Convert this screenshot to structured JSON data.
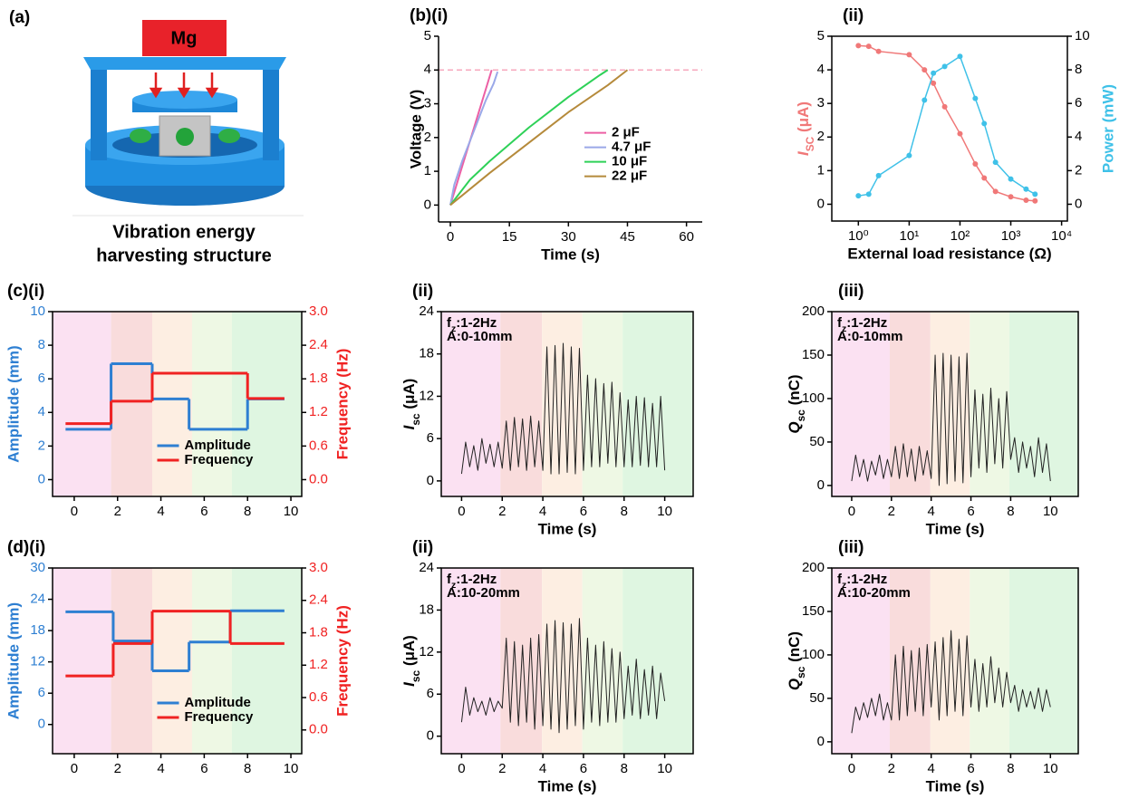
{
  "illustration": {
    "panel_label": "(a)",
    "block_label": "Mg",
    "caption": [
      "Vibration energy",
      "harvesting structure"
    ]
  },
  "chart_data": [
    {
      "type": "line",
      "panel_label": "(b)(i)",
      "xlabel": "Time (s)",
      "ylabel": "Voltage (V)",
      "xlim": [
        -3,
        64
      ],
      "xticks": [
        0,
        15,
        30,
        45,
        60
      ],
      "ylim": [
        -0.5,
        5
      ],
      "yticks": [
        0,
        1,
        2,
        3,
        4,
        5
      ],
      "frame": false,
      "legend": "center right",
      "hline": 4,
      "hline_color": "#f7a8bd",
      "series": [
        {
          "name": "2 μF",
          "color": "#ec5fa4",
          "x": [
            0,
            10.5
          ],
          "values": [
            0,
            4
          ]
        },
        {
          "name": "4.7 μF",
          "color": "#9aa8e8",
          "x": [
            0,
            1,
            3,
            6,
            9,
            11,
            12
          ],
          "values": [
            0,
            0.6,
            1.3,
            2.2,
            3.1,
            3.6,
            3.95
          ]
        },
        {
          "name": "10 μF",
          "color": "#2ed158",
          "x": [
            0,
            5,
            10,
            20,
            30,
            38,
            40
          ],
          "values": [
            0,
            0.75,
            1.3,
            2.3,
            3.2,
            3.85,
            4
          ]
        },
        {
          "name": "22 μF",
          "color": "#b58a3b",
          "x": [
            0,
            10,
            20,
            30,
            40,
            45
          ],
          "values": [
            0,
            0.95,
            1.85,
            2.75,
            3.55,
            4
          ]
        }
      ]
    },
    {
      "type": "line",
      "panel_label": "(ii)",
      "xlabel": "External load resistance (Ω)",
      "ylabel": [
        {
          "text": "I",
          "style": "italic"
        },
        {
          "text": "SC",
          "style": "sub"
        },
        {
          "text": " (μA)"
        }
      ],
      "y2label": "Power (mW)",
      "ycolor": "#f07878",
      "y2color": "#3fc1e8",
      "xscale": "log",
      "markers": true,
      "frame": true,
      "xlim": [
        0.3,
        13000
      ],
      "xticks": [
        {
          "value": 1,
          "label": "10⁰"
        },
        {
          "value": 10,
          "label": "10¹"
        },
        {
          "value": 100,
          "label": "10²"
        },
        {
          "value": 1000,
          "label": "10³"
        },
        {
          "value": 10000,
          "label": "10⁴"
        }
      ],
      "ylim": [
        -0.5,
        5
      ],
      "yticks": [
        0,
        1,
        2,
        3,
        4,
        5
      ],
      "y2lim": [
        -1,
        10
      ],
      "y2ticks": [
        0,
        2,
        4,
        6,
        8,
        10
      ],
      "x": [
        1,
        1.6,
        2.5,
        10,
        20,
        30,
        50,
        100,
        200,
        300,
        500,
        1000,
        2000,
        3000
      ],
      "series": [
        {
          "color": "#f07878",
          "values": [
            4.72,
            4.7,
            4.55,
            4.45,
            4.0,
            3.6,
            2.9,
            2.1,
            1.2,
            0.78,
            0.38,
            0.22,
            0.12,
            0.1
          ]
        },
        {
          "color": "#3fc1e8",
          "axis": "y2",
          "values": [
            0.5,
            0.6,
            1.7,
            2.9,
            6.2,
            7.8,
            8.2,
            8.8,
            6.3,
            4.8,
            2.5,
            1.5,
            0.9,
            0.6
          ]
        }
      ]
    },
    {
      "type": "step",
      "panel_label": "(c)(i)",
      "ylabel": "Amplitude (mm)",
      "y2label": "Frequency (Hz)",
      "ycolor": "#2e7fd2",
      "y2color": "#f02222",
      "color_ticks": true,
      "bands": true,
      "frame": true,
      "legend": "lower center",
      "xlim": [
        -1,
        10.5
      ],
      "xticks": [
        0,
        2,
        4,
        6,
        8,
        10
      ],
      "ylim": [
        -1,
        10
      ],
      "yticks": [
        0,
        2,
        4,
        6,
        8,
        10
      ],
      "y2lim": [
        -0.3,
        3.0
      ],
      "y2ticks": [
        {
          "value": 0,
          "label": "0.0"
        },
        0.6,
        1.2,
        1.8,
        2.4,
        {
          "value": 3,
          "label": "3.0"
        }
      ],
      "series": [
        {
          "name": "Amplitude",
          "color": "#2e7fd2",
          "bins": [
            -0.4,
            1.7,
            3.6,
            5.3,
            8,
            9.7
          ],
          "values": [
            3,
            6.9,
            4.8,
            3,
            4.8
          ]
        },
        {
          "name": "Frequency",
          "color": "#f02222",
          "axis": "y2",
          "bins": [
            -0.4,
            1.7,
            3.6,
            8,
            9.7
          ],
          "values": [
            1.0,
            1.4,
            1.9,
            1.45
          ]
        }
      ]
    },
    {
      "type": "line",
      "panel_label": "(ii)",
      "xlabel": "Time (s)",
      "ylabel": [
        {
          "text": "I",
          "style": "italic"
        },
        {
          "text": "sc",
          "style": "sub"
        },
        {
          "text": " (μA)"
        }
      ],
      "annotations": [
        [
          {
            "text": "f"
          },
          {
            "text": "z",
            "style": "sub"
          },
          {
            "text": ":1-2Hz"
          }
        ],
        "A:0-10mm"
      ],
      "bands": true,
      "frame": true,
      "xlim": [
        -1,
        11.4
      ],
      "xticks": [
        0,
        2,
        4,
        6,
        8,
        10
      ],
      "ylim": [
        -2.2,
        24
      ],
      "yticks": [
        0,
        6,
        12,
        18,
        24
      ],
      "x": [
        0,
        0.2,
        0.4,
        0.6,
        0.8,
        1,
        1.2,
        1.4,
        1.6,
        1.8,
        2,
        2.2,
        2.4,
        2.6,
        2.8,
        3,
        3.2,
        3.4,
        3.6,
        3.8,
        4,
        4.2,
        4.4,
        4.6,
        4.8,
        5,
        5.2,
        5.4,
        5.6,
        5.8,
        6,
        6.2,
        6.4,
        6.6,
        6.8,
        7,
        7.2,
        7.4,
        7.6,
        7.8,
        8,
        8.2,
        8.4,
        8.6,
        8.8,
        9,
        9.2,
        9.4,
        9.6,
        9.8,
        10
      ],
      "series": [
        {
          "color": "#222222",
          "values": [
            1,
            5.5,
            2,
            5,
            1.5,
            6,
            2.5,
            5.2,
            2,
            5.5,
            1.8,
            8.5,
            1.5,
            9,
            2,
            8.8,
            1.5,
            9.2,
            2,
            8.5,
            1.5,
            19,
            1,
            19.2,
            1,
            19.5,
            1.2,
            19,
            1,
            18.8,
            1.5,
            15,
            2,
            14.5,
            2,
            13.8,
            2.5,
            14,
            2,
            12.5,
            2,
            11.5,
            2,
            12,
            2.2,
            11.8,
            2,
            11,
            2,
            12,
            1.5
          ]
        }
      ]
    },
    {
      "type": "line",
      "panel_label": "(iii)",
      "xlabel": "Time (s)",
      "ylabel": [
        {
          "text": "Q",
          "style": "italic"
        },
        {
          "text": "sc",
          "style": "sub"
        },
        {
          "text": " (nC)"
        }
      ],
      "annotations": [
        [
          {
            "text": "f"
          },
          {
            "text": "z",
            "style": "sub"
          },
          {
            "text": ":1-2Hz"
          }
        ],
        "A:0-10mm"
      ],
      "bands": true,
      "frame": true,
      "xlim": [
        -1,
        11.4
      ],
      "xticks": [
        0,
        2,
        4,
        6,
        8,
        10
      ],
      "ylim": [
        -12.6,
        200
      ],
      "yticks": [
        0,
        50,
        100,
        150,
        200
      ],
      "x": [
        0,
        0.2,
        0.4,
        0.6,
        0.8,
        1,
        1.2,
        1.4,
        1.6,
        1.8,
        2,
        2.2,
        2.4,
        2.6,
        2.8,
        3,
        3.2,
        3.4,
        3.6,
        3.8,
        4,
        4.2,
        4.4,
        4.6,
        4.8,
        5,
        5.2,
        5.4,
        5.6,
        5.8,
        6,
        6.2,
        6.4,
        6.6,
        6.8,
        7,
        7.2,
        7.4,
        7.6,
        7.8,
        8,
        8.2,
        8.4,
        8.6,
        8.8,
        9,
        9.2,
        9.4,
        9.6,
        9.8,
        10
      ],
      "series": [
        {
          "color": "#222222",
          "values": [
            5,
            35,
            10,
            30,
            5,
            28,
            12,
            35,
            8,
            30,
            10,
            45,
            8,
            48,
            10,
            42,
            5,
            45,
            12,
            40,
            8,
            150,
            0,
            152,
            2,
            150,
            5,
            148,
            3,
            152,
            10,
            110,
            20,
            105,
            15,
            112,
            25,
            100,
            20,
            108,
            30,
            55,
            15,
            50,
            20,
            45,
            10,
            55,
            15,
            48,
            5
          ]
        }
      ]
    },
    {
      "type": "step",
      "panel_label": "(d)(i)",
      "ylabel": "Amplitude (mm)",
      "y2label": "Frequency (Hz)",
      "ycolor": "#2e7fd2",
      "y2color": "#f02222",
      "color_ticks": true,
      "bands": true,
      "frame": true,
      "legend": "lower center",
      "xlim": [
        -1,
        10.5
      ],
      "xticks": [
        0,
        2,
        4,
        6,
        8,
        10
      ],
      "ylim": [
        -5.6,
        30
      ],
      "yticks": [
        0,
        6,
        12,
        18,
        24,
        30
      ],
      "y2lim": [
        -0.44,
        3.0
      ],
      "y2ticks": [
        {
          "value": 0,
          "label": "0.0"
        },
        0.6,
        1.2,
        1.8,
        2.4,
        {
          "value": 3,
          "label": "3.0"
        }
      ],
      "series": [
        {
          "name": "Amplitude",
          "color": "#2e7fd2",
          "bins": [
            -0.4,
            1.8,
            3.6,
            5.3,
            7.2,
            9.7
          ],
          "values": [
            21.6,
            16,
            10.3,
            15.8,
            21.8
          ]
        },
        {
          "name": "Frequency",
          "color": "#f02222",
          "axis": "y2",
          "bins": [
            -0.4,
            1.8,
            3.6,
            7.2,
            9.7
          ],
          "values": [
            1.0,
            1.6,
            2.2,
            1.6
          ]
        }
      ]
    },
    {
      "type": "line",
      "panel_label": "(ii)",
      "xlabel": "Time (s)",
      "ylabel": [
        {
          "text": "I",
          "style": "italic"
        },
        {
          "text": "sc",
          "style": "sub"
        },
        {
          "text": " (μA)"
        }
      ],
      "annotations": [
        [
          {
            "text": "f"
          },
          {
            "text": "z",
            "style": "sub"
          },
          {
            "text": ":1-2Hz"
          }
        ],
        "A:10-20mm"
      ],
      "bands": true,
      "frame": true,
      "xlim": [
        -1,
        11.4
      ],
      "xticks": [
        0,
        2,
        4,
        6,
        8,
        10
      ],
      "ylim": [
        -2.5,
        24
      ],
      "yticks": [
        0,
        6,
        12,
        18,
        24
      ],
      "x": [
        0,
        0.2,
        0.4,
        0.6,
        0.8,
        1,
        1.2,
        1.4,
        1.6,
        1.8,
        2,
        2.2,
        2.4,
        2.6,
        2.8,
        3,
        3.2,
        3.4,
        3.6,
        3.8,
        4,
        4.2,
        4.4,
        4.6,
        4.8,
        5,
        5.2,
        5.4,
        5.6,
        5.8,
        6,
        6.2,
        6.4,
        6.6,
        6.8,
        7,
        7.2,
        7.4,
        7.6,
        7.8,
        8,
        8.2,
        8.4,
        8.6,
        8.8,
        9,
        9.2,
        9.4,
        9.6,
        9.8,
        10
      ],
      "series": [
        {
          "color": "#222222",
          "values": [
            2,
            7,
            3,
            5.5,
            3.5,
            5,
            3,
            5.5,
            3.5,
            5,
            4,
            14,
            2,
            13.5,
            1.5,
            13,
            2,
            14,
            1,
            14.5,
            1.5,
            16,
            1,
            16.5,
            0.5,
            16.2,
            1,
            16,
            1.5,
            16.8,
            1,
            14,
            2,
            13,
            1.5,
            13.5,
            2,
            12.5,
            2,
            12,
            2.5,
            10,
            3,
            11,
            2.5,
            9.5,
            3,
            10,
            2.5,
            9,
            5
          ]
        }
      ]
    },
    {
      "type": "line",
      "panel_label": "(iii)",
      "xlabel": "Time (s)",
      "ylabel": [
        {
          "text": "Q",
          "style": "italic"
        },
        {
          "text": "sc",
          "style": "sub"
        },
        {
          "text": " (nC)"
        }
      ],
      "annotations": [
        [
          {
            "text": "f"
          },
          {
            "text": "z",
            "style": "sub"
          },
          {
            "text": ":1-2Hz"
          }
        ],
        "A:10-20mm"
      ],
      "bands": true,
      "frame": true,
      "xlim": [
        -1,
        11.4
      ],
      "xticks": [
        0,
        2,
        4,
        6,
        8,
        10
      ],
      "ylim": [
        -13.7,
        200
      ],
      "yticks": [
        0,
        50,
        100,
        150,
        200
      ],
      "x": [
        0,
        0.2,
        0.4,
        0.6,
        0.8,
        1,
        1.2,
        1.4,
        1.6,
        1.8,
        2,
        2.2,
        2.4,
        2.6,
        2.8,
        3,
        3.2,
        3.4,
        3.6,
        3.8,
        4,
        4.2,
        4.4,
        4.6,
        4.8,
        5,
        5.2,
        5.4,
        5.6,
        5.8,
        6,
        6.2,
        6.4,
        6.6,
        6.8,
        7,
        7.2,
        7.4,
        7.6,
        7.8,
        8,
        8.2,
        8.4,
        8.6,
        8.8,
        9,
        9.2,
        9.4,
        9.6,
        9.8,
        10
      ],
      "series": [
        {
          "color": "#222222",
          "values": [
            10,
            40,
            25,
            45,
            28,
            50,
            30,
            55,
            25,
            45,
            25,
            100,
            25,
            110,
            30,
            105,
            35,
            108,
            30,
            112,
            40,
            115,
            25,
            120,
            30,
            128,
            35,
            118,
            30,
            122,
            40,
            95,
            35,
            90,
            40,
            98,
            45,
            85,
            40,
            80,
            45,
            65,
            35,
            60,
            40,
            58,
            38,
            62,
            35,
            60,
            40
          ]
        }
      ]
    }
  ]
}
